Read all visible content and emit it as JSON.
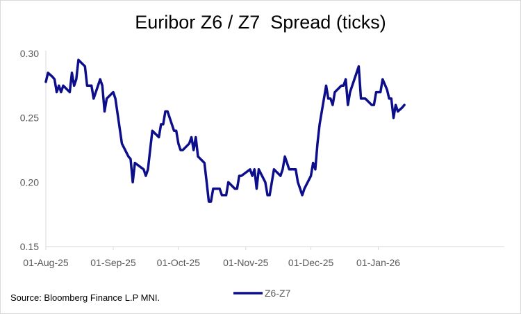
{
  "chart_data": {
    "type": "line",
    "title": "Euribor Z6 / Z7  Spread (ticks)",
    "xlabel": "",
    "ylabel": "",
    "ylim": [
      0.15,
      0.3
    ],
    "yticks": [
      "0.30",
      "0.25",
      "0.20",
      "0.15"
    ],
    "ytick_values": [
      0.3,
      0.25,
      0.2,
      0.15
    ],
    "xticks": [
      "01-Aug-25",
      "01-Sep-25",
      "01-Oct-25",
      "01-Nov-25",
      "01-Dec-25",
      "01-Jan-26"
    ],
    "xlim": [
      "2025-08-01",
      "2026-02-28"
    ],
    "grid": false,
    "legend_position": "bottom",
    "line_color": "#0d0e8a",
    "series": [
      {
        "name": "Z6-Z7",
        "points": [
          [
            "2025-08-01",
            0.278
          ],
          [
            "2025-08-02",
            0.285
          ],
          [
            "2025-08-04",
            0.282
          ],
          [
            "2025-08-05",
            0.28
          ],
          [
            "2025-08-06",
            0.27
          ],
          [
            "2025-08-07",
            0.275
          ],
          [
            "2025-08-08",
            0.27
          ],
          [
            "2025-08-09",
            0.275
          ],
          [
            "2025-08-12",
            0.27
          ],
          [
            "2025-08-13",
            0.285
          ],
          [
            "2025-08-14",
            0.275
          ],
          [
            "2025-08-15",
            0.28
          ],
          [
            "2025-08-16",
            0.295
          ],
          [
            "2025-08-19",
            0.29
          ],
          [
            "2025-08-20",
            0.275
          ],
          [
            "2025-08-22",
            0.275
          ],
          [
            "2025-08-23",
            0.265
          ],
          [
            "2025-08-26",
            0.28
          ],
          [
            "2025-08-27",
            0.275
          ],
          [
            "2025-08-28",
            0.255
          ],
          [
            "2025-08-29",
            0.265
          ],
          [
            "2025-09-01",
            0.27
          ],
          [
            "2025-09-02",
            0.265
          ],
          [
            "2025-09-05",
            0.23
          ],
          [
            "2025-09-08",
            0.22
          ],
          [
            "2025-09-09",
            0.218
          ],
          [
            "2025-09-10",
            0.2
          ],
          [
            "2025-09-11",
            0.215
          ],
          [
            "2025-09-15",
            0.21
          ],
          [
            "2025-09-16",
            0.205
          ],
          [
            "2025-09-17",
            0.21
          ],
          [
            "2025-09-18",
            0.225
          ],
          [
            "2025-09-19",
            0.24
          ],
          [
            "2025-09-22",
            0.235
          ],
          [
            "2025-09-23",
            0.245
          ],
          [
            "2025-09-24",
            0.245
          ],
          [
            "2025-09-25",
            0.255
          ],
          [
            "2025-09-26",
            0.255
          ],
          [
            "2025-09-29",
            0.24
          ],
          [
            "2025-09-30",
            0.24
          ],
          [
            "2025-10-01",
            0.23
          ],
          [
            "2025-10-02",
            0.225
          ],
          [
            "2025-10-03",
            0.225
          ],
          [
            "2025-10-06",
            0.23
          ],
          [
            "2025-10-07",
            0.235
          ],
          [
            "2025-10-08",
            0.225
          ],
          [
            "2025-10-09",
            0.235
          ],
          [
            "2025-10-10",
            0.22
          ],
          [
            "2025-10-13",
            0.215
          ],
          [
            "2025-10-14",
            0.2
          ],
          [
            "2025-10-15",
            0.185
          ],
          [
            "2025-10-16",
            0.185
          ],
          [
            "2025-10-17",
            0.195
          ],
          [
            "2025-10-20",
            0.195
          ],
          [
            "2025-10-21",
            0.19
          ],
          [
            "2025-10-23",
            0.19
          ],
          [
            "2025-10-24",
            0.2
          ],
          [
            "2025-10-27",
            0.195
          ],
          [
            "2025-10-28",
            0.195
          ],
          [
            "2025-10-29",
            0.205
          ],
          [
            "2025-10-30",
            0.205
          ],
          [
            "2025-11-03",
            0.21
          ],
          [
            "2025-11-04",
            0.205
          ],
          [
            "2025-11-05",
            0.21
          ],
          [
            "2025-11-06",
            0.195
          ],
          [
            "2025-11-07",
            0.21
          ],
          [
            "2025-11-10",
            0.2
          ],
          [
            "2025-11-11",
            0.19
          ],
          [
            "2025-11-12",
            0.19
          ],
          [
            "2025-11-13",
            0.2
          ],
          [
            "2025-11-14",
            0.21
          ],
          [
            "2025-11-17",
            0.205
          ],
          [
            "2025-11-18",
            0.21
          ],
          [
            "2025-11-19",
            0.22
          ],
          [
            "2025-11-20",
            0.215
          ],
          [
            "2025-11-21",
            0.21
          ],
          [
            "2025-11-24",
            0.21
          ],
          [
            "2025-11-25",
            0.2
          ],
          [
            "2025-11-26",
            0.195
          ],
          [
            "2025-11-27",
            0.19
          ],
          [
            "2025-11-28",
            0.195
          ],
          [
            "2025-12-01",
            0.205
          ],
          [
            "2025-12-02",
            0.215
          ],
          [
            "2025-12-03",
            0.21
          ],
          [
            "2025-12-04",
            0.23
          ],
          [
            "2025-12-05",
            0.245
          ],
          [
            "2025-12-08",
            0.275
          ],
          [
            "2025-12-09",
            0.265
          ],
          [
            "2025-12-10",
            0.265
          ],
          [
            "2025-12-11",
            0.26
          ],
          [
            "2025-12-12",
            0.27
          ],
          [
            "2025-12-15",
            0.275
          ],
          [
            "2025-12-16",
            0.275
          ],
          [
            "2025-12-17",
            0.28
          ],
          [
            "2025-12-18",
            0.26
          ],
          [
            "2025-12-19",
            0.27
          ],
          [
            "2025-12-22",
            0.285
          ],
          [
            "2025-12-23",
            0.29
          ],
          [
            "2025-12-24",
            0.265
          ],
          [
            "2025-12-26",
            0.265
          ],
          [
            "2025-12-29",
            0.26
          ],
          [
            "2025-12-30",
            0.26
          ],
          [
            "2025-12-31",
            0.27
          ],
          [
            "2026-01-02",
            0.27
          ],
          [
            "2026-01-03",
            0.28
          ],
          [
            "2026-01-05",
            0.272
          ],
          [
            "2026-01-06",
            0.265
          ],
          [
            "2026-01-07",
            0.265
          ],
          [
            "2026-01-08",
            0.25
          ],
          [
            "2026-01-09",
            0.26
          ],
          [
            "2026-01-10",
            0.255
          ],
          [
            "2026-01-12",
            0.258
          ],
          [
            "2026-01-13",
            0.26
          ]
        ]
      }
    ]
  },
  "source": "Source: Bloomberg Finance L.P MNI."
}
